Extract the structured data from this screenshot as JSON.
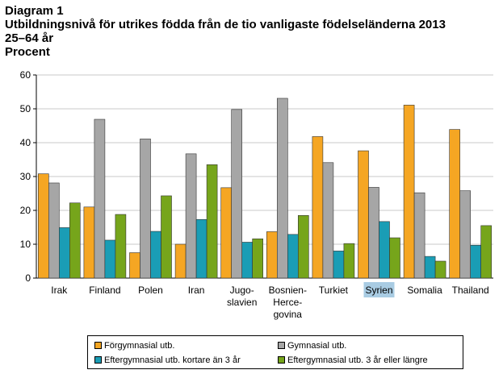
{
  "title": {
    "line1": "Diagram 1",
    "line2": "Utbildningsnivå för utrikes födda från de tio vanligaste födelseländerna 2013",
    "line3": "25–64 år",
    "line4": "Procent"
  },
  "chart_data": {
    "type": "bar",
    "categories": [
      [
        "Irak"
      ],
      [
        "Finland"
      ],
      [
        "Polen"
      ],
      [
        "Iran"
      ],
      [
        "Jugo-",
        "slavien"
      ],
      [
        "Bosnien-",
        "Herce-",
        "govina"
      ],
      [
        "Turkiet"
      ],
      [
        "Syrien"
      ],
      [
        "Somalia"
      ],
      [
        "Thailand"
      ]
    ],
    "highlighted_category": "Syrien",
    "series": [
      {
        "name": "Förgymnasial utb.",
        "color": "#F5A623",
        "values": [
          30.8,
          21.0,
          7.5,
          10.0,
          26.7,
          13.7,
          41.8,
          37.6,
          51.1,
          43.9
        ]
      },
      {
        "name": "Gymnasial utb.",
        "color": "#A6A6A6",
        "values": [
          28.1,
          46.9,
          41.1,
          36.7,
          49.8,
          53.1,
          34.1,
          26.8,
          25.2,
          25.8
        ]
      },
      {
        "name": "Eftergymnasial utb. kortare än 3 år",
        "color": "#1A9DB5",
        "values": [
          14.9,
          11.2,
          13.8,
          17.3,
          10.6,
          12.9,
          8.0,
          16.7,
          6.4,
          9.7
        ]
      },
      {
        "name": "Eftergymnasial utb. 3 år eller längre",
        "color": "#76A51B",
        "values": [
          22.2,
          18.8,
          24.3,
          33.5,
          11.6,
          18.5,
          10.2,
          11.9,
          5.0,
          15.5
        ]
      }
    ],
    "ylim": [
      0,
      60
    ],
    "yticks": [
      0,
      10,
      20,
      30,
      40,
      50,
      60
    ],
    "grid": true,
    "legend_position": "bottom"
  },
  "legend": {
    "items": [
      {
        "label": "Förgymnasial utb.",
        "color": "#F5A623"
      },
      {
        "label": "Gymnasial utb.",
        "color": "#A6A6A6"
      },
      {
        "label": "Eftergymnasial utb. kortare än 3 år",
        "color": "#1A9DB5"
      },
      {
        "label": "Eftergymnasial utb. 3 år eller längre",
        "color": "#76A51B"
      }
    ]
  },
  "highlight_color": "#A9CCE3"
}
